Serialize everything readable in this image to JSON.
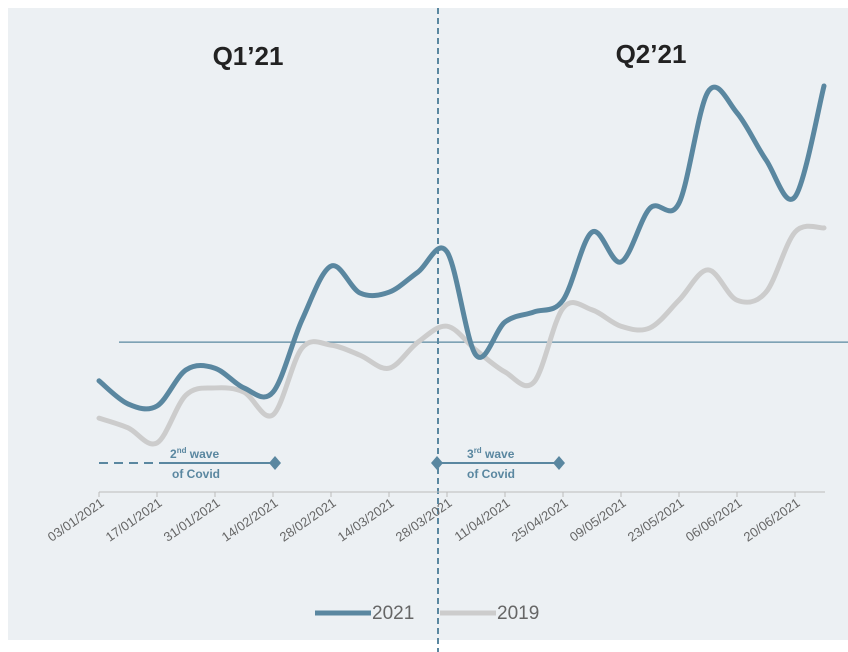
{
  "chart_data": {
    "type": "line",
    "annotations": {
      "q1": "Q1’21",
      "q2": "Q2’21",
      "wave2": {
        "num": "2",
        "sup": "nd",
        "rest": " wave",
        "line2": "of Covid"
      },
      "wave3": {
        "num": "3",
        "sup": "rd",
        "rest": " wave",
        "line2": "of Covid"
      }
    },
    "categories": [
      "03/01/2021",
      null,
      "17/01/2021",
      null,
      "31/01/2021",
      null,
      "14/02/2021",
      null,
      "28/02/2021",
      null,
      "14/03/2021",
      null,
      "28/03/2021",
      null,
      "11/04/2021",
      null,
      "25/04/2021",
      null,
      "09/05/2021",
      null,
      "23/05/2021",
      null,
      "06/06/2021",
      null,
      "20/06/2021",
      null
    ],
    "series": [
      {
        "name": "2021",
        "color": "#5a87a0",
        "values": [
          26.0,
          20.5,
          20.0,
          28.6,
          29.0,
          24.3,
          23.3,
          40.5,
          53.3,
          46.9,
          47.1,
          51.9,
          56.7,
          32.1,
          40.0,
          42.4,
          45.2,
          61.4,
          54.3,
          67.1,
          68.3,
          94.8,
          89.8,
          78.6,
          69.8,
          96.2
        ]
      },
      {
        "name": "2019",
        "color": "#cccccc",
        "values": [
          17.1,
          14.8,
          11.2,
          22.6,
          24.3,
          23.3,
          17.9,
          33.8,
          34.5,
          32.1,
          29.0,
          35.2,
          39.0,
          33.3,
          28.1,
          25.7,
          43.3,
          42.9,
          39.0,
          38.6,
          45.2,
          52.4,
          45.2,
          47.1,
          61.4,
          62.4
        ]
      }
    ],
    "reference_line": 35.2,
    "ylim": [
      0,
      100
    ]
  }
}
